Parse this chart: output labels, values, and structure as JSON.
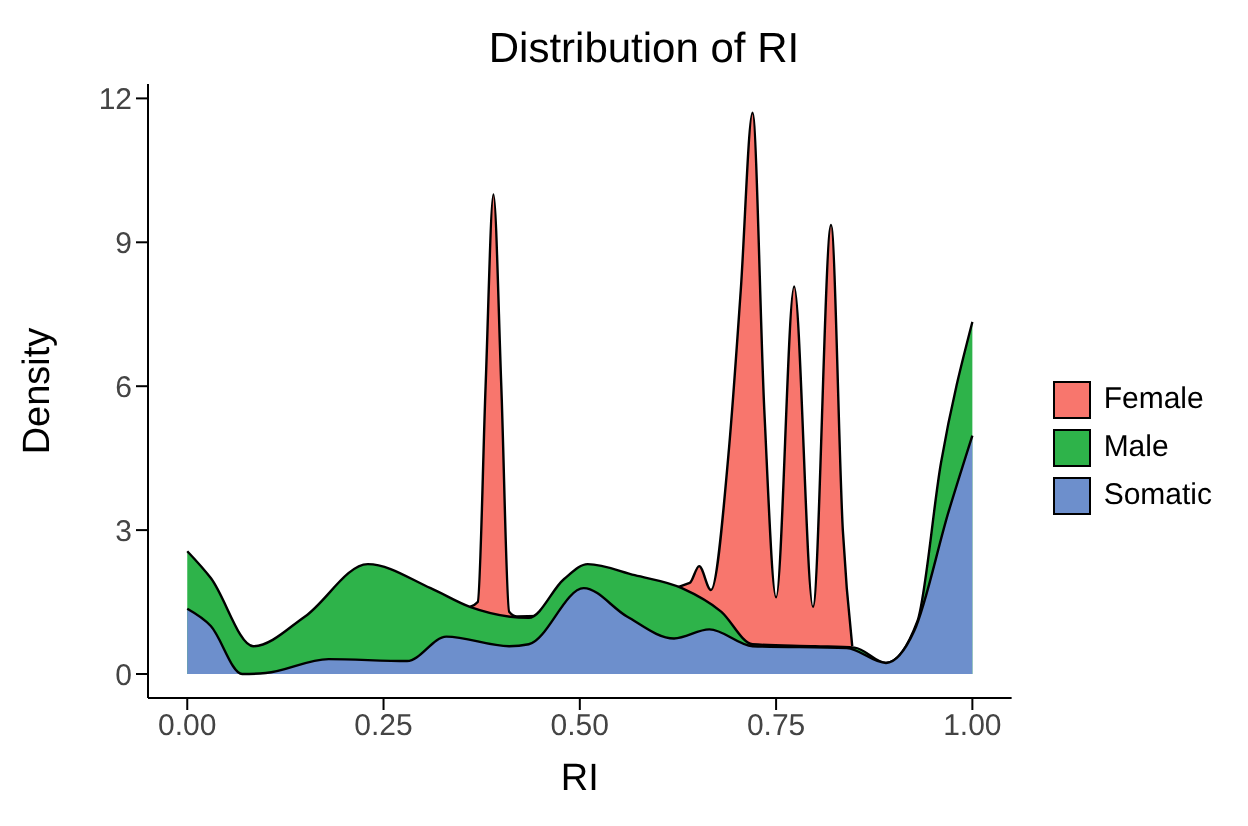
{
  "chart_data": {
    "type": "area",
    "title": "Distribution of RI",
    "xlabel": "RI",
    "ylabel": "Density",
    "xlim": [
      -0.05,
      1.05
    ],
    "ylim": [
      -0.5,
      12.3
    ],
    "xticks": [
      {
        "value": 0,
        "label": "0.00"
      },
      {
        "value": 0.25,
        "label": "0.25"
      },
      {
        "value": 0.5,
        "label": "0.50"
      },
      {
        "value": 0.75,
        "label": "0.75"
      },
      {
        "value": 1,
        "label": "1.00"
      }
    ],
    "yticks": [
      0,
      3,
      6,
      9,
      12
    ],
    "grid": false,
    "legend": "right",
    "line_style": "solid",
    "series": [
      {
        "name": "Female",
        "color": "#f8766d",
        "x": [
          0.36,
          0.37,
          0.38,
          0.39,
          0.4,
          0.41,
          0.42,
          0.64,
          0.652,
          0.667,
          0.69,
          0.705,
          0.72,
          0.735,
          0.75,
          0.773,
          0.797,
          0.82,
          0.835,
          0.847
        ],
        "values": [
          1.4,
          1.5,
          6.0,
          10.0,
          6.0,
          1.3,
          1.2,
          1.9,
          2.25,
          1.75,
          4.7,
          8.0,
          11.7,
          5.5,
          1.6,
          8.08,
          1.4,
          9.36,
          3.0,
          0.58
        ]
      },
      {
        "name": "Male",
        "color": "#2eb34a",
        "x": [
          0,
          0.03,
          0.084,
          0.15,
          0.23,
          0.31,
          0.36,
          0.435,
          0.48,
          0.51,
          0.57,
          0.63,
          0.68,
          0.72,
          0.8,
          0.85,
          0.89,
          0.93,
          0.96,
          1.0
        ],
        "values": [
          2.56,
          2.0,
          0.58,
          1.2,
          2.29,
          1.79,
          1.4,
          1.17,
          1.98,
          2.29,
          2.06,
          1.79,
          1.3,
          0.62,
          0.58,
          0.55,
          0.23,
          1.1,
          4.4,
          7.34
        ]
      },
      {
        "name": "Somatic",
        "color": "#6d8fcc",
        "x": [
          0,
          0.03,
          0.07,
          0.1,
          0.18,
          0.28,
          0.33,
          0.41,
          0.435,
          0.505,
          0.56,
          0.62,
          0.665,
          0.72,
          0.84,
          0.89,
          0.926,
          0.97,
          1.0
        ],
        "values": [
          1.36,
          1.0,
          0.0,
          0.02,
          0.31,
          0.27,
          0.78,
          0.58,
          0.62,
          1.79,
          1.2,
          0.74,
          0.93,
          0.58,
          0.54,
          0.23,
          0.9,
          3.4,
          4.97
        ]
      }
    ]
  }
}
